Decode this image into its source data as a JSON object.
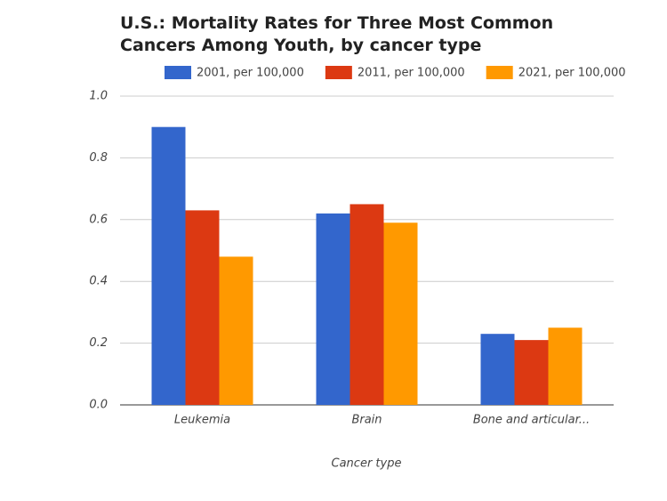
{
  "chart_data": {
    "type": "bar",
    "title": "U.S.: Mortality Rates for Three Most Common Cancers Among Youth, by cancer type",
    "x_label": "Cancer type",
    "categories": [
      "Leukemia",
      "Brain",
      "Bone and articular..."
    ],
    "series": [
      {
        "name": "2001, per 100,000",
        "color": "#3366cc",
        "values": [
          0.9,
          0.62,
          0.23
        ]
      },
      {
        "name": "2011, per 100,000",
        "color": "#dc3912",
        "values": [
          0.63,
          0.65,
          0.21
        ]
      },
      {
        "name": "2021, per 100,000",
        "color": "#ff9900",
        "values": [
          0.48,
          0.59,
          0.25
        ]
      }
    ],
    "ylim": [
      0,
      1
    ],
    "yticks": [
      {
        "value": 0,
        "label": "0.0"
      },
      0.2,
      0.4,
      0.6,
      0.8,
      {
        "value": 1,
        "label": "1.0"
      }
    ],
    "grid": true,
    "legend": "top"
  }
}
